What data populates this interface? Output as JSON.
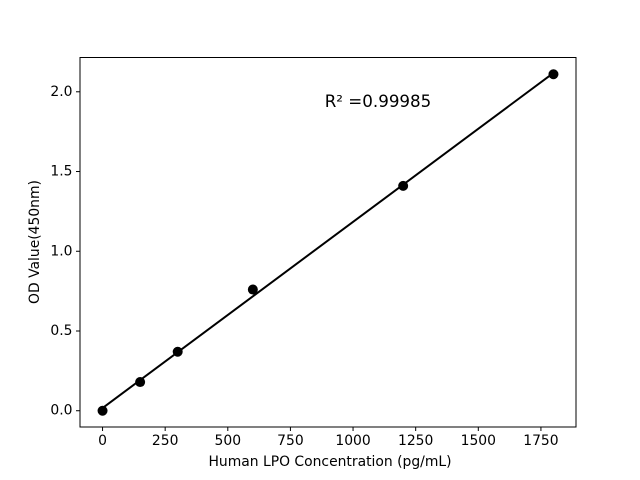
{
  "chart_data": {
    "type": "scatter",
    "title": "",
    "xlabel": "Human LPO Concentration (pg/mL)",
    "ylabel": "OD Value(450nm)",
    "annotation": "R² =0.99985",
    "r_squared": 0.99985,
    "x": [
      0,
      150,
      300,
      600,
      1200,
      1800
    ],
    "y": [
      0.0,
      0.18,
      0.37,
      0.76,
      1.41,
      2.11
    ],
    "x_ticks": [
      "0",
      "250",
      "500",
      "750",
      "1000",
      "1250",
      "1500",
      "1750"
    ],
    "y_ticks": [
      "0.0",
      "0.5",
      "1.0",
      "1.5",
      "2.0"
    ],
    "xlim": [
      -90,
      1890
    ],
    "ylim": [
      -0.102,
      2.215
    ],
    "grid": false,
    "legend": "none",
    "trendline": "linear",
    "marker_color": "#000000",
    "line_color": "#000000",
    "axis_color": "#000000",
    "background_color": "#ffffff"
  }
}
